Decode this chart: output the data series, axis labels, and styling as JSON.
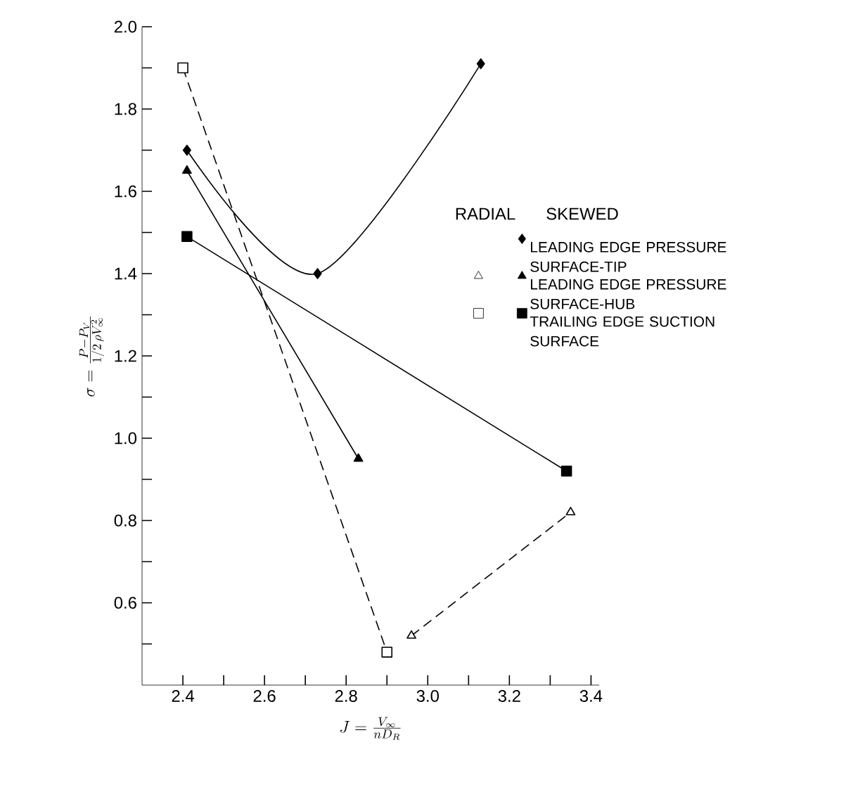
{
  "chart_data": {
    "type": "line",
    "xlabel": "J = \\frac{V_\\infty}{nD_R}",
    "ylabel": "\\sigma = \\frac{P - P_V}{1/2\\,\\rho V_\\infty^{2}}",
    "xlim": [
      2.3,
      3.42
    ],
    "ylim": [
      0.4,
      2.0
    ],
    "xticks": [
      2.4,
      {
        "value": 2.5,
        "label": null
      },
      2.6,
      {
        "value": 2.7,
        "label": null
      },
      2.8,
      {
        "value": 2.9,
        "label": null
      },
      {
        "value": 3.0,
        "label": "3.0"
      },
      {
        "value": 3.1,
        "label": null
      },
      3.2,
      {
        "value": 3.3,
        "label": null
      },
      3.4
    ],
    "yticks": [
      {
        "value": 0.5,
        "label": null
      },
      0.6,
      {
        "value": 0.7,
        "label": null
      },
      0.8,
      {
        "value": 0.9,
        "label": null
      },
      {
        "value": 1.0,
        "label": "1.0"
      },
      {
        "value": 1.1,
        "label": null
      },
      1.2,
      {
        "value": 1.3,
        "label": null
      },
      1.4,
      {
        "value": 1.5,
        "label": null
      },
      1.6,
      {
        "value": 1.7,
        "label": null
      },
      1.8,
      {
        "value": 1.9,
        "label": null
      },
      {
        "value": 2.0,
        "label": "2.0"
      }
    ],
    "grid": false,
    "legend": "right",
    "annotations": [
      "RADIAL",
      "SKEWED"
    ],
    "series": [
      {
        "name": "LEADING EDGE PRESSURE SURFACE-TIP",
        "color": "#000000",
        "marker": "diamond",
        "line_style": "solid",
        "x": [
          2.41,
          2.73,
          3.13
        ],
        "values": [
          1.7,
          1.4,
          1.91
        ]
      },
      {
        "name": "LEADING EDGE PRESSURE SURFACE-HUB",
        "color": "#000000",
        "marker": "triangle",
        "line_style": "solid",
        "x": [
          2.41,
          2.83
        ],
        "values": [
          1.65,
          0.95
        ]
      },
      {
        "name": "TRAILING EDGE SUCTION SURFACE",
        "color": "#000000",
        "marker": "square",
        "line_style": "solid",
        "x": [
          2.41,
          3.34
        ],
        "values": [
          1.49,
          0.92
        ]
      },
      {
        "color": "#000000",
        "marker": "triangle",
        "line_style": "dashed",
        "x": [
          2.96,
          3.35
        ],
        "values": [
          0.52,
          0.82
        ]
      },
      {
        "color": "#000000",
        "marker": "square",
        "line_style": "dashed",
        "x": [
          2.4,
          2.9
        ],
        "values": [
          1.9,
          0.48
        ]
      }
    ]
  }
}
